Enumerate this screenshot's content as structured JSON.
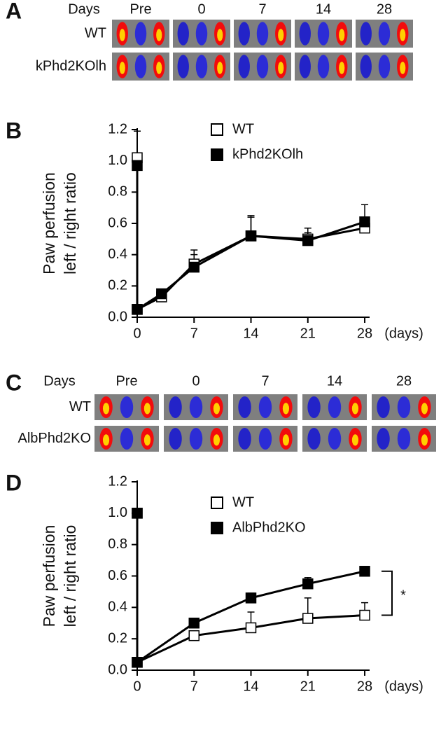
{
  "panel_a": {
    "label": "A",
    "header": "Days",
    "columns": [
      "Pre",
      "0",
      "7",
      "14",
      "28"
    ],
    "rows": [
      "WT",
      "kPhd2KOlh"
    ]
  },
  "chart_data": [
    {
      "type": "line",
      "panel_label": "B",
      "y_label": [
        "Paw perfusion",
        "left / right ratio"
      ],
      "x_unit": "(days)",
      "x": [
        0,
        0,
        3,
        7,
        14,
        21,
        28
      ],
      "series": [
        {
          "name": "WT",
          "color": "#ffffff",
          "values": [
            1.02,
            0.05,
            0.13,
            0.34,
            0.52,
            0.5,
            0.57
          ],
          "errors": [
            0.17,
            null,
            null,
            0.09,
            0.12,
            0.07,
            null
          ]
        },
        {
          "name": "kPhd2KOlh",
          "color": "#000000",
          "values": [
            0.97,
            0.05,
            0.15,
            0.32,
            0.52,
            0.49,
            0.61
          ],
          "errors": [
            null,
            null,
            null,
            0.08,
            0.13,
            0.05,
            0.11
          ]
        }
      ],
      "xlim": [
        0,
        28.6
      ],
      "xticks": [
        0,
        7,
        14,
        21,
        28
      ],
      "ylim": [
        0,
        1.2
      ],
      "yticks": [
        {
          "value": 0,
          "label": "0.0"
        },
        {
          "value": 0.2,
          "label": "0.2"
        },
        {
          "value": 0.4,
          "label": "0.4"
        },
        {
          "value": 0.6,
          "label": "0.6"
        },
        {
          "value": 0.8,
          "label": "0.8"
        },
        {
          "value": 1,
          "label": "1.0"
        },
        {
          "value": 1.2,
          "label": "1.2"
        }
      ]
    },
    {
      "type": "line",
      "panel_label": "D",
      "y_label": [
        "Paw perfusion",
        "left / right ratio"
      ],
      "x_unit": "(days)",
      "x": [
        0,
        0,
        7,
        14,
        21,
        28
      ],
      "series": [
        {
          "name": "WT",
          "color": "#ffffff",
          "values": [
            1.0,
            0.05,
            0.22,
            0.27,
            0.33,
            0.35
          ],
          "errors": [
            null,
            null,
            null,
            0.1,
            0.13,
            0.08
          ]
        },
        {
          "name": "AlbPhd2KO",
          "color": "#000000",
          "values": [
            1.0,
            0.05,
            0.3,
            0.46,
            0.55,
            0.63
          ],
          "errors": [
            null,
            null,
            0.03,
            0.03,
            0.04,
            0.02
          ]
        }
      ],
      "xlim": [
        0,
        28.6
      ],
      "xticks": [
        0,
        7,
        14,
        21,
        28
      ],
      "ylim": [
        0,
        1.2
      ],
      "yticks": [
        {
          "value": 0,
          "label": "0.0"
        },
        {
          "value": 0.2,
          "label": "0.2"
        },
        {
          "value": 0.4,
          "label": "0.4"
        },
        {
          "value": 0.6,
          "label": "0.6"
        },
        {
          "value": 0.8,
          "label": "0.8"
        },
        {
          "value": 1,
          "label": "1.0"
        },
        {
          "value": 1.2,
          "label": "1.2"
        }
      ],
      "annotation": "*"
    }
  ],
  "panel_c": {
    "label": "C",
    "header": "Days",
    "columns": [
      "Pre",
      "0",
      "7",
      "14",
      "28"
    ],
    "rows": [
      "WT",
      "AlbPhd2KO"
    ]
  }
}
